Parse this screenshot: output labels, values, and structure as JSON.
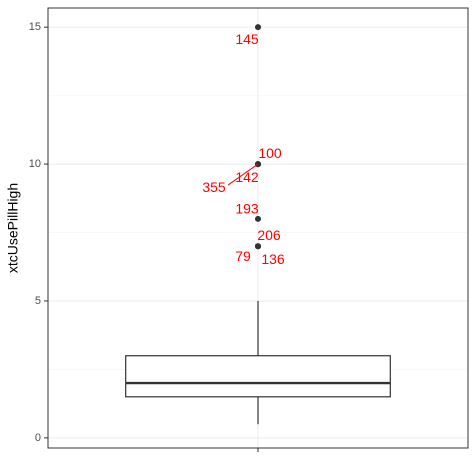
{
  "chart_data": {
    "type": "box",
    "y_label": "xtcUsePillHigh",
    "categories": [
      null
    ],
    "box": {
      "whisker_low": 0.5,
      "q1": 1.5,
      "median": 2,
      "q3": 3,
      "whisker_high": 5
    },
    "outliers": [
      {
        "value": 15,
        "label": "145"
      },
      {
        "value": 10,
        "label": "100"
      },
      {
        "value": 10,
        "label": "142"
      },
      {
        "value": 10,
        "label": "355"
      },
      {
        "value": 8,
        "label": "193"
      },
      {
        "value": 7,
        "label": "206"
      },
      {
        "value": 7,
        "label": "79"
      },
      {
        "value": 7,
        "label": "136"
      }
    ],
    "label_color": "#ff0000",
    "point_color": "#333333",
    "ylim": [
      -0.37,
      15.7
    ],
    "yticks": [
      0,
      5,
      10,
      15
    ],
    "yminor": [
      2.5,
      7.5,
      12.5
    ],
    "grid": true
  }
}
